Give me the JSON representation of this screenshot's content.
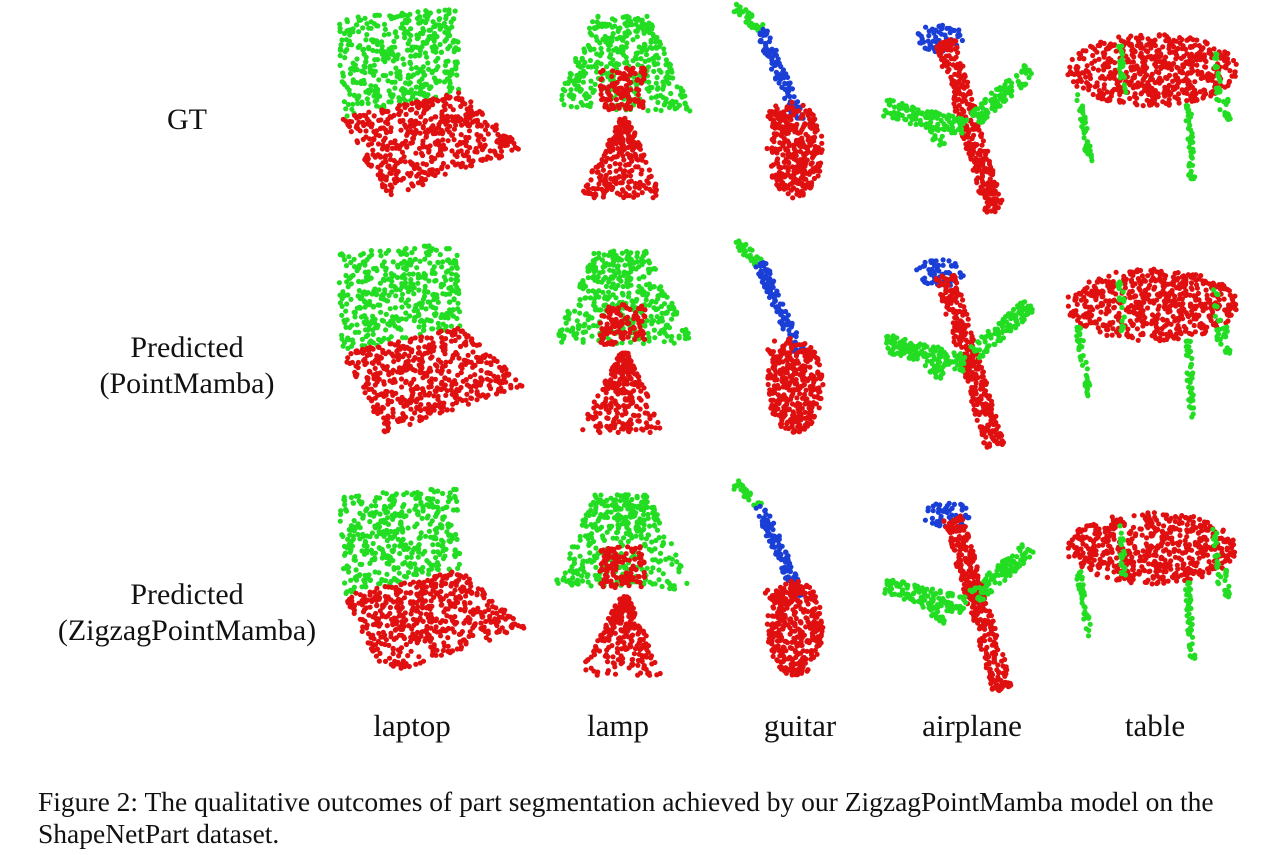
{
  "figure": {
    "rows": [
      {
        "label_lines": [
          "GT"
        ]
      },
      {
        "label_lines": [
          "Predicted",
          "(PointMamba)"
        ]
      },
      {
        "label_lines": [
          "Predicted",
          "(ZigzagPointMamba)"
        ]
      }
    ],
    "columns": [
      "laptop",
      "lamp",
      "guitar",
      "airplane",
      "table"
    ],
    "part_colors": {
      "red": "#e01010",
      "green": "#22dd22",
      "blue": "#1a3fd6"
    }
  },
  "caption": "Figure 2: The qualitative outcomes of part segmentation achieved by our ZigzagPointMamba model on the ShapeNetPart dataset."
}
